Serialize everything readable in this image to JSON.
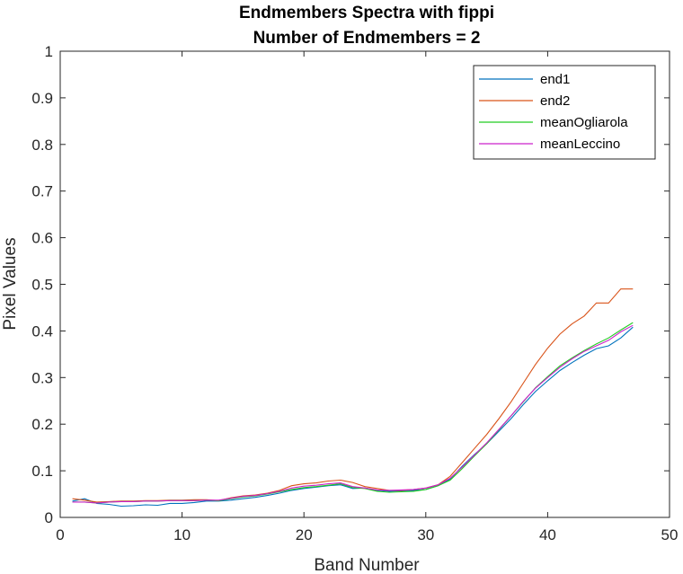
{
  "chart_data": {
    "type": "line",
    "title": [
      "Endmembers Spectra with fippi",
      "Number of Endmembers = 2"
    ],
    "xlabel": "Band Number",
    "ylabel": "Pixel Values",
    "xlim": [
      0,
      50
    ],
    "ylim": [
      0,
      1
    ],
    "xticks": [
      0,
      10,
      20,
      30,
      40,
      50
    ],
    "yticks": [
      0,
      0.1,
      0.2,
      0.3,
      0.4,
      0.5,
      0.6,
      0.7,
      0.8,
      0.9,
      1
    ],
    "grid": false,
    "legend_position": "top-right",
    "x": [
      1,
      2,
      3,
      4,
      5,
      6,
      7,
      8,
      9,
      10,
      11,
      12,
      13,
      14,
      15,
      16,
      17,
      18,
      19,
      20,
      21,
      22,
      23,
      24,
      25,
      26,
      27,
      28,
      29,
      30,
      31,
      32,
      33,
      34,
      35,
      36,
      37,
      38,
      39,
      40,
      41,
      42,
      43,
      44,
      45,
      46,
      47
    ],
    "series": [
      {
        "name": "end1",
        "color": "#0072BD",
        "values": [
          0.035,
          0.04,
          0.03,
          0.028,
          0.024,
          0.025,
          0.027,
          0.026,
          0.03,
          0.03,
          0.032,
          0.035,
          0.035,
          0.037,
          0.04,
          0.043,
          0.047,
          0.052,
          0.058,
          0.062,
          0.065,
          0.068,
          0.07,
          0.062,
          0.063,
          0.058,
          0.056,
          0.057,
          0.058,
          0.06,
          0.068,
          0.082,
          0.11,
          0.135,
          0.158,
          0.185,
          0.212,
          0.242,
          0.27,
          0.293,
          0.315,
          0.332,
          0.348,
          0.362,
          0.368,
          0.385,
          0.408
        ]
      },
      {
        "name": "end2",
        "color": "#D95319",
        "values": [
          0.04,
          0.037,
          0.033,
          0.034,
          0.035,
          0.035,
          0.036,
          0.036,
          0.037,
          0.037,
          0.038,
          0.038,
          0.036,
          0.042,
          0.046,
          0.048,
          0.052,
          0.058,
          0.068,
          0.072,
          0.074,
          0.078,
          0.08,
          0.075,
          0.066,
          0.062,
          0.058,
          0.058,
          0.06,
          0.063,
          0.07,
          0.088,
          0.118,
          0.148,
          0.178,
          0.212,
          0.248,
          0.288,
          0.328,
          0.363,
          0.393,
          0.415,
          0.432,
          0.46,
          0.46,
          0.49,
          0.49
        ]
      },
      {
        "name": "meanOgliarola",
        "color": "#22CC22",
        "values": [
          0.033,
          0.033,
          0.031,
          0.033,
          0.034,
          0.034,
          0.035,
          0.035,
          0.036,
          0.036,
          0.036,
          0.037,
          0.036,
          0.04,
          0.044,
          0.046,
          0.05,
          0.055,
          0.06,
          0.064,
          0.066,
          0.069,
          0.072,
          0.064,
          0.062,
          0.056,
          0.054,
          0.055,
          0.056,
          0.06,
          0.068,
          0.08,
          0.105,
          0.132,
          0.158,
          0.188,
          0.218,
          0.248,
          0.278,
          0.302,
          0.325,
          0.342,
          0.358,
          0.372,
          0.385,
          0.402,
          0.418
        ]
      },
      {
        "name": "meanLeccino",
        "color": "#CC22CC",
        "values": [
          0.033,
          0.033,
          0.031,
          0.033,
          0.034,
          0.034,
          0.035,
          0.035,
          0.036,
          0.036,
          0.036,
          0.037,
          0.037,
          0.041,
          0.045,
          0.047,
          0.051,
          0.056,
          0.063,
          0.067,
          0.069,
          0.072,
          0.074,
          0.066,
          0.063,
          0.059,
          0.058,
          0.059,
          0.06,
          0.063,
          0.07,
          0.084,
          0.108,
          0.134,
          0.16,
          0.189,
          0.218,
          0.249,
          0.277,
          0.3,
          0.322,
          0.34,
          0.356,
          0.368,
          0.38,
          0.398,
          0.412
        ]
      }
    ]
  }
}
